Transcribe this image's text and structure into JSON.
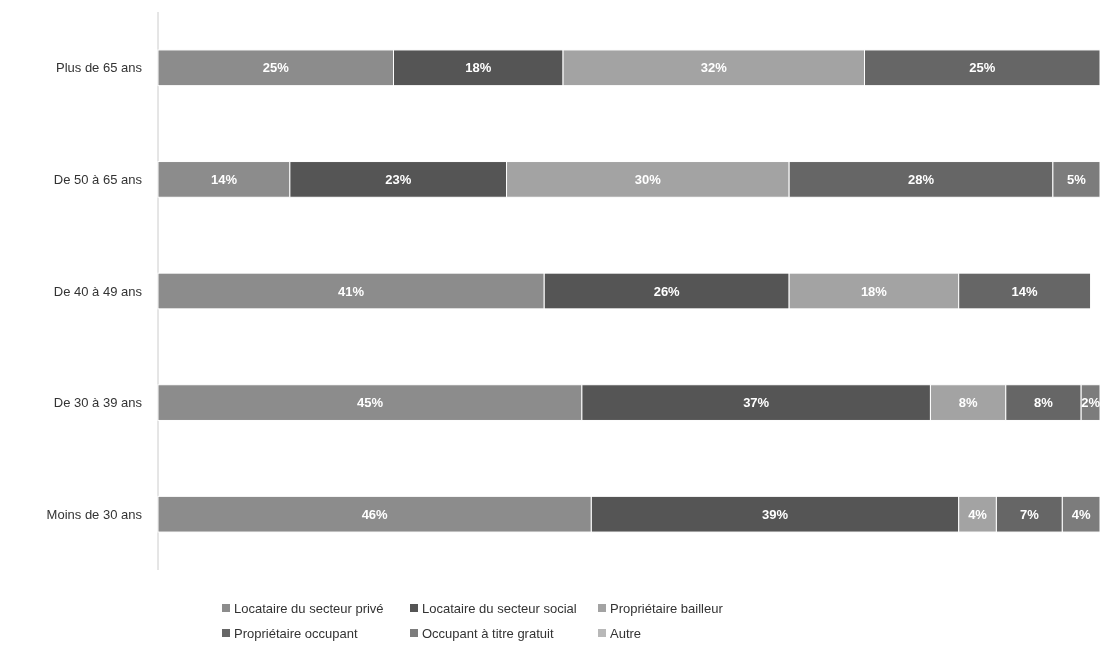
{
  "chart_data": {
    "type": "bar",
    "orientation": "horizontal",
    "stacked": true,
    "legend": "bottom",
    "categories": [
      "Plus de 65 ans",
      "De 50 à 65 ans",
      "De 40 à 49 ans",
      "De 30 à 39 ans",
      "Moins de 30 ans"
    ],
    "series": [
      {
        "name": "Locataire du secteur privé",
        "color": "#8c8c8c",
        "values": [
          25,
          14,
          41,
          45,
          46
        ],
        "value_labels": [
          "25%",
          "14%",
          "41%",
          "45%",
          "46%"
        ]
      },
      {
        "name": "Locataire du secteur social",
        "color": "#555555",
        "values": [
          18,
          23,
          26,
          37,
          39
        ],
        "value_labels": [
          "18%",
          "23%",
          "26%",
          "37%",
          "39%"
        ]
      },
      {
        "name": "Propriétaire bailleur",
        "color": "#a3a3a3",
        "values": [
          32,
          30,
          18,
          8,
          4
        ],
        "value_labels": [
          "32%",
          "30%",
          "18%",
          "8%",
          "4%"
        ]
      },
      {
        "name": "Propriétaire occupant",
        "color": "#666666",
        "values": [
          25,
          28,
          14,
          8,
          7
        ],
        "value_labels": [
          "25%",
          "28%",
          "14%",
          "8%",
          "7%"
        ]
      },
      {
        "name": "Occupant à titre gratuit",
        "color": "#7c7c7c",
        "values": [
          null,
          5,
          null,
          2,
          4
        ],
        "value_labels": [
          null,
          "5%",
          null,
          "2%",
          "4%"
        ]
      },
      {
        "name": "Autre",
        "color": "#b8b8b8",
        "values": [
          null,
          null,
          null,
          null,
          null
        ]
      }
    ]
  }
}
